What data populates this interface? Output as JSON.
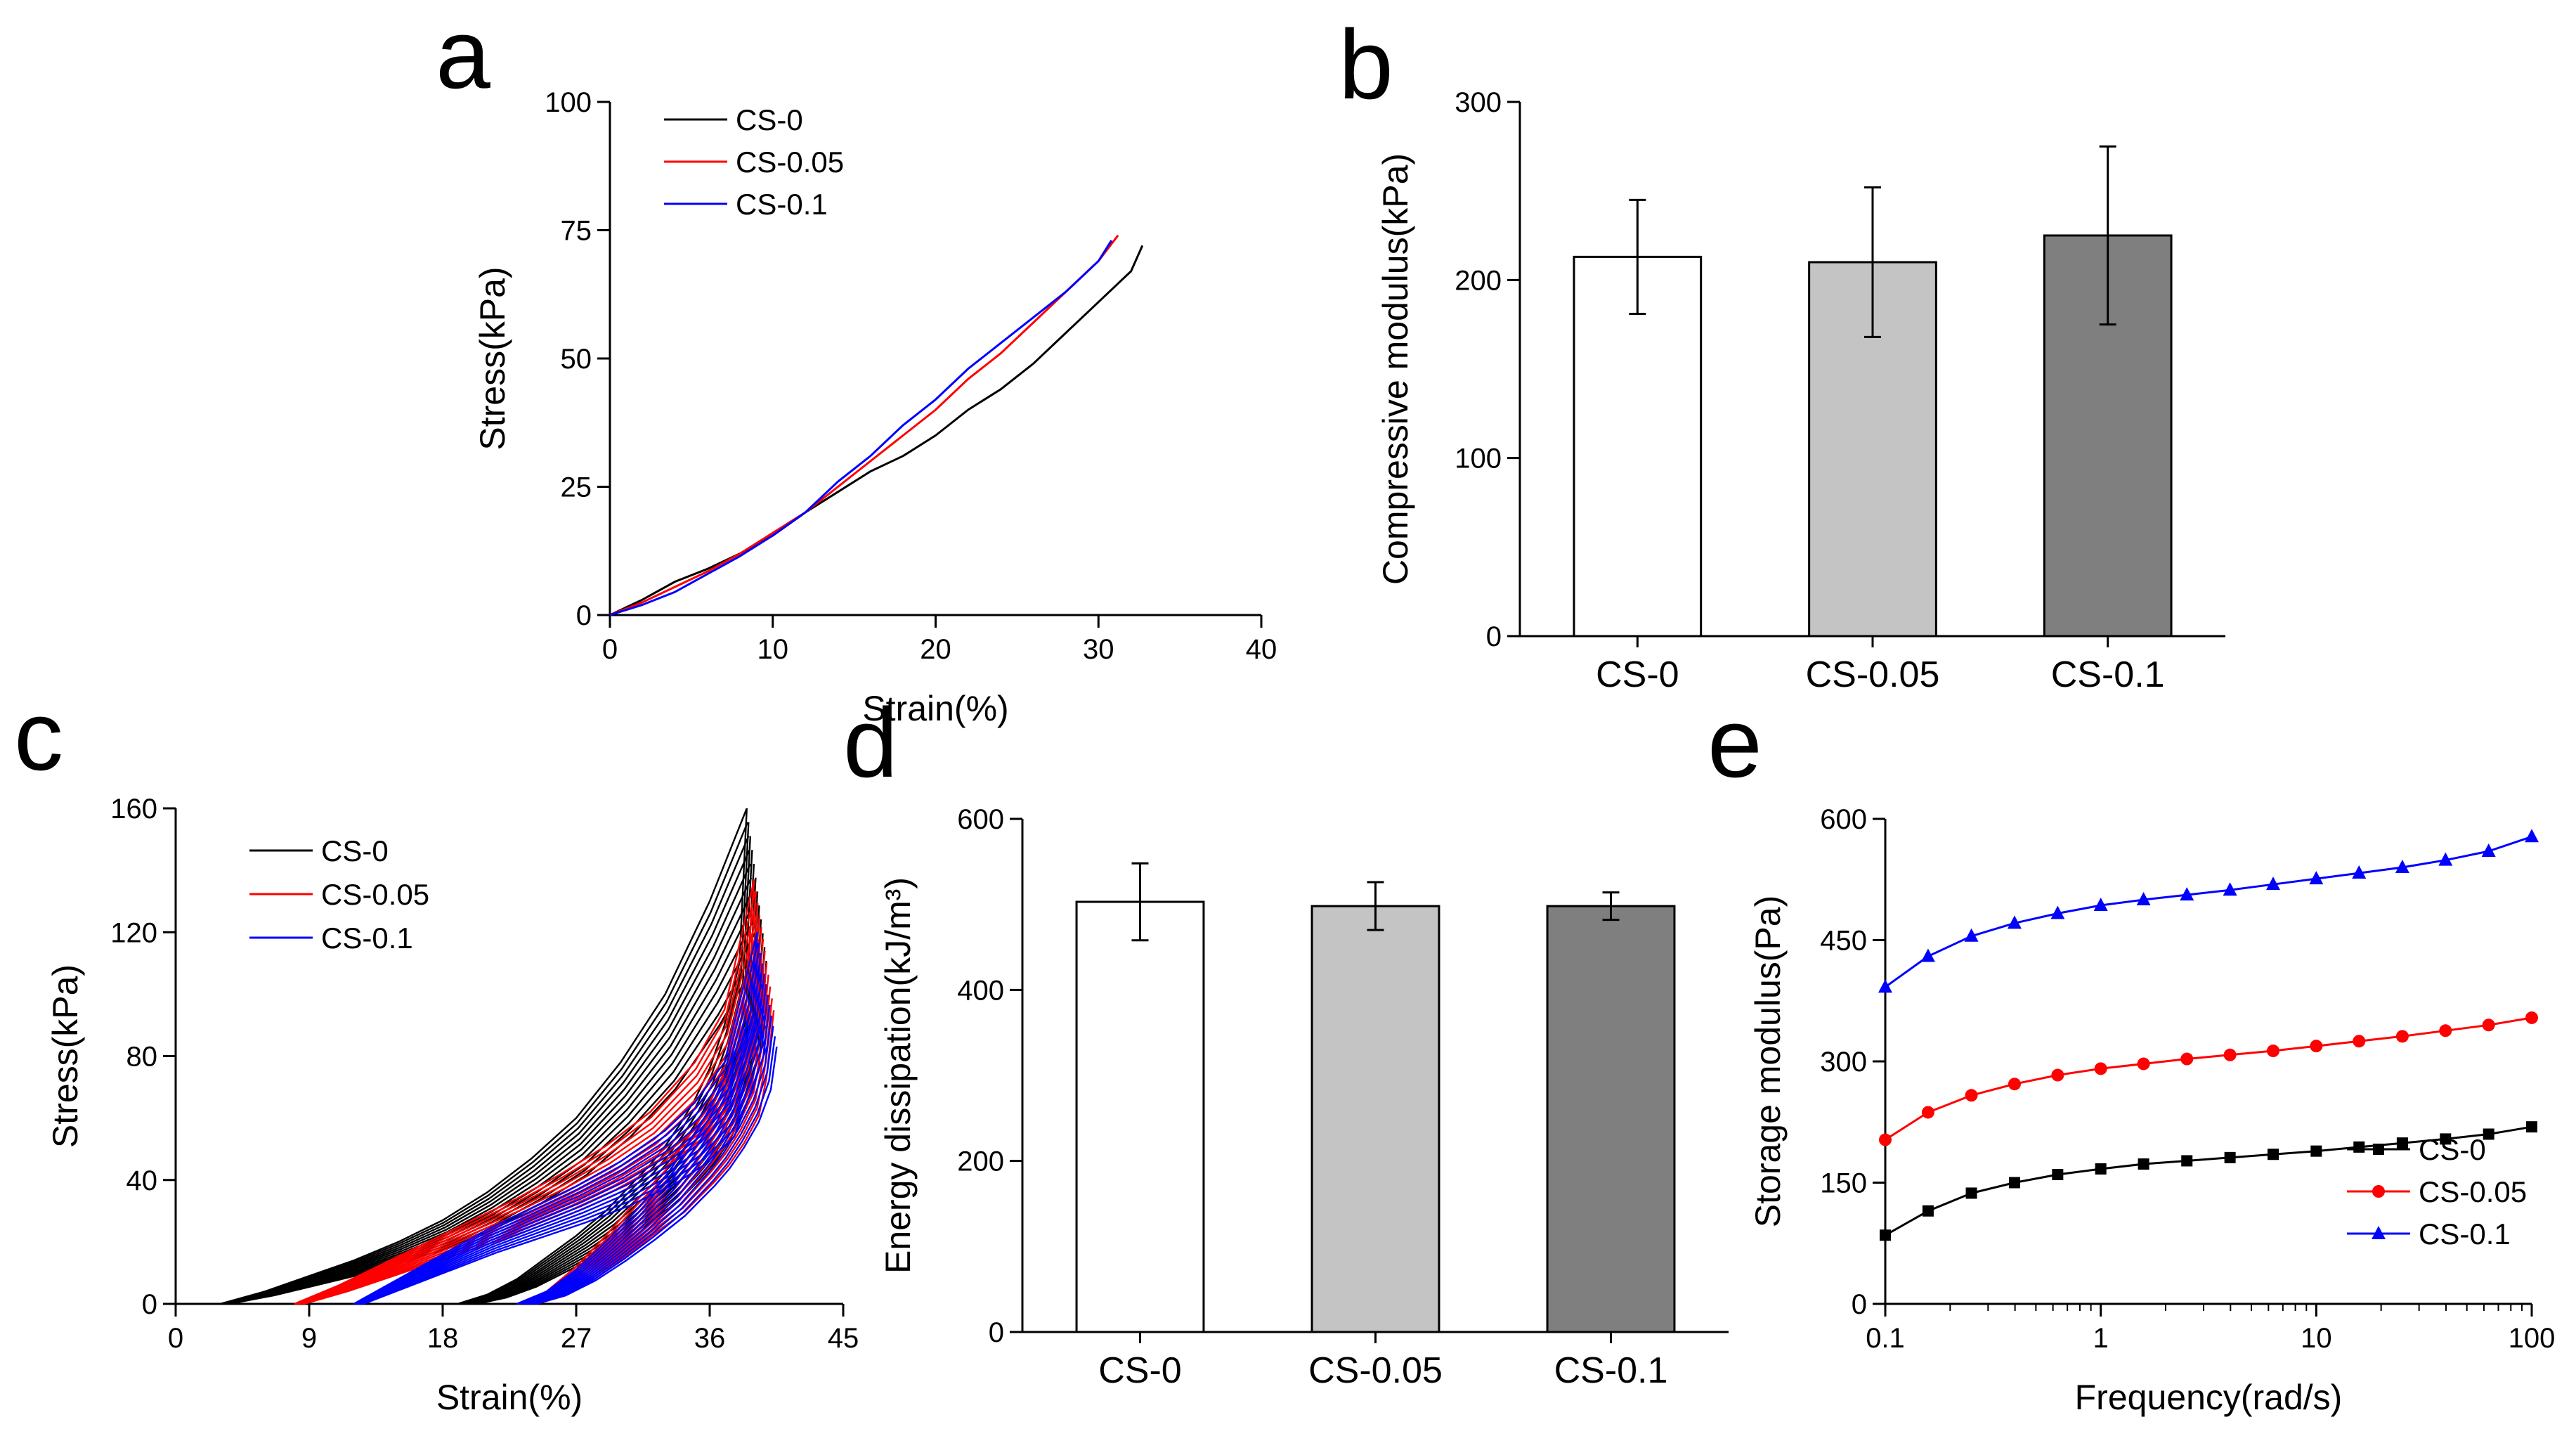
{
  "chart_data": [
    {
      "id": "a",
      "panel_label": "a",
      "type": "line",
      "xlabel": "Strain(%)",
      "ylabel": "Stress(kPa)",
      "xlim": [
        0,
        40
      ],
      "ylim": [
        0,
        100
      ],
      "xticks": [
        0,
        10,
        20,
        30,
        40
      ],
      "yticks": [
        0,
        25,
        50,
        75,
        100
      ],
      "legend_position": "top-left",
      "series": [
        {
          "name": "CS-0",
          "color": "#000000",
          "x": [
            0,
            2,
            4,
            6,
            8,
            10,
            12,
            14,
            16,
            18,
            20,
            22,
            24,
            26,
            28,
            30,
            31,
            32,
            32.7
          ],
          "y": [
            0,
            3,
            6.5,
            9,
            12,
            15.5,
            20,
            24,
            28,
            31,
            35,
            40,
            44,
            49,
            55,
            61,
            64,
            67,
            72
          ]
        },
        {
          "name": "CS-0.05",
          "color": "#ff0000",
          "x": [
            0,
            2,
            4,
            6,
            8,
            10,
            12,
            14,
            16,
            18,
            20,
            22,
            24,
            26,
            28,
            30,
            31.2
          ],
          "y": [
            0,
            2.5,
            5.5,
            8.5,
            12,
            16,
            20,
            25,
            30,
            35,
            40,
            46,
            51,
            57,
            63,
            69,
            74
          ]
        },
        {
          "name": "CS-0.1",
          "color": "#0000ff",
          "x": [
            0,
            2,
            4,
            6,
            8,
            10,
            12,
            14,
            16,
            18,
            20,
            22,
            24,
            26,
            28,
            30,
            30.8
          ],
          "y": [
            0,
            2,
            4.5,
            8,
            11.5,
            15.5,
            20,
            26,
            31,
            37,
            42,
            48,
            53,
            58,
            63,
            69,
            73
          ]
        }
      ]
    },
    {
      "id": "b",
      "panel_label": "b",
      "type": "bar",
      "ylabel": "Compressive modulus(kPa)",
      "ylim": [
        0,
        300
      ],
      "yticks": [
        0,
        100,
        200,
        300
      ],
      "categories": [
        "CS-0",
        "CS-0.05",
        "CS-0.1"
      ],
      "values": [
        213,
        210,
        225
      ],
      "errors": [
        32,
        42,
        50
      ],
      "bar_colors": [
        "#ffffff",
        "#c4c4c4",
        "#7f7f7f"
      ]
    },
    {
      "id": "c",
      "panel_label": "c",
      "type": "line",
      "xlabel": "Strain(%)",
      "ylabel": "Stress(kPa)",
      "xlim": [
        0,
        45
      ],
      "ylim": [
        0,
        160
      ],
      "xticks": [
        0,
        9,
        18,
        27,
        36,
        45
      ],
      "yticks": [
        0,
        40,
        80,
        120,
        160
      ],
      "legend_position": "top-left",
      "series": [
        {
          "name": "CS-0",
          "color": "#000000",
          "loading": {
            "x": [
              3,
              6,
              9,
              12,
              15,
              18,
              21,
              24,
              27,
              30,
              33,
              36,
              38.5
            ],
            "y": [
              0,
              4,
              9,
              14,
              20,
              27,
              36,
              47,
              60,
              78,
              100,
              130,
              160
            ]
          },
          "unloading": {
            "x": [
              38.5,
              38,
              37,
              36,
              35,
              34,
              33,
              32,
              31,
              30,
              29,
              28,
              27,
              25,
              23,
              21,
              19
            ],
            "y": [
              160,
              110,
              90,
              76,
              66,
              58,
              51,
              45,
              40,
              35,
              30,
              26,
              22,
              15,
              8,
              3,
              0
            ]
          }
        },
        {
          "name": "CS-0.05",
          "color": "#ff0000",
          "loading": {
            "x": [
              8,
              11,
              14,
              17,
              20,
              23,
              26,
              29,
              32,
              35,
              37,
              39
            ],
            "y": [
              0,
              6,
              13,
              20,
              27,
              34,
              42,
              51,
              62,
              78,
              95,
              137
            ]
          },
          "unloading": {
            "x": [
              39,
              38.5,
              38,
              37,
              36,
              35,
              34,
              33,
              31,
              29,
              27,
              25,
              23
            ],
            "y": [
              137,
              105,
              88,
              75,
              65,
              57,
              50,
              43,
              33,
              22,
              12,
              4,
              0
            ]
          }
        },
        {
          "name": "CS-0.1",
          "color": "#0000ff",
          "loading": {
            "x": [
              12,
              15,
              18,
              21,
              24,
              27,
              30,
              33,
              35,
              37,
              39.2
            ],
            "y": [
              0,
              8,
              16,
              24,
              31,
              38,
              46,
              56,
              65,
              78,
              120
            ]
          },
          "unloading": {
            "x": [
              39.2,
              38.8,
              38,
              37,
              36,
              35,
              34,
              33,
              31,
              29,
              27,
              25,
              23
            ],
            "y": [
              120,
              100,
              85,
              73,
              63,
              55,
              48,
              41,
              30,
              20,
              11,
              4,
              0
            ]
          }
        }
      ]
    },
    {
      "id": "d",
      "panel_label": "d",
      "type": "bar",
      "ylabel": "Energy dissipation(kJ/m³)",
      "ylim": [
        0,
        600
      ],
      "yticks": [
        0,
        200,
        400,
        600
      ],
      "categories": [
        "CS-0",
        "CS-0.05",
        "CS-0.1"
      ],
      "values": [
        503,
        498,
        498
      ],
      "errors": [
        45,
        28,
        16
      ],
      "bar_colors": [
        "#ffffff",
        "#c4c4c4",
        "#7f7f7f"
      ]
    },
    {
      "id": "e",
      "panel_label": "e",
      "type": "line",
      "xscale": "log",
      "xlabel": "Frequency(rad/s)",
      "ylabel": "Storage modulus(Pa)",
      "xlim": [
        0.1,
        100
      ],
      "ylim": [
        0,
        600
      ],
      "xticks": [
        0.1,
        1,
        10,
        100
      ],
      "yticks": [
        0,
        150,
        300,
        450,
        600
      ],
      "legend_position": "bottom-right",
      "x": [
        0.1,
        0.158,
        0.251,
        0.398,
        0.631,
        1,
        1.58,
        2.51,
        3.98,
        6.31,
        10,
        15.8,
        25.1,
        39.8,
        63.1,
        100
      ],
      "series": [
        {
          "name": "CS-0",
          "color": "#000000",
          "marker": "square",
          "values": [
            85,
            115,
            137,
            150,
            160,
            167,
            173,
            177,
            181,
            185,
            189,
            194,
            199,
            204,
            210,
            219
          ]
        },
        {
          "name": "CS-0.05",
          "color": "#ff0000",
          "marker": "circle",
          "values": [
            203,
            237,
            258,
            272,
            283,
            291,
            297,
            303,
            308,
            313,
            319,
            325,
            331,
            338,
            345,
            354
          ]
        },
        {
          "name": "CS-0.1",
          "color": "#0000ff",
          "marker": "triangle",
          "values": [
            392,
            430,
            455,
            471,
            483,
            493,
            500,
            506,
            512,
            519,
            526,
            533,
            540,
            549,
            560,
            578
          ]
        }
      ]
    }
  ]
}
